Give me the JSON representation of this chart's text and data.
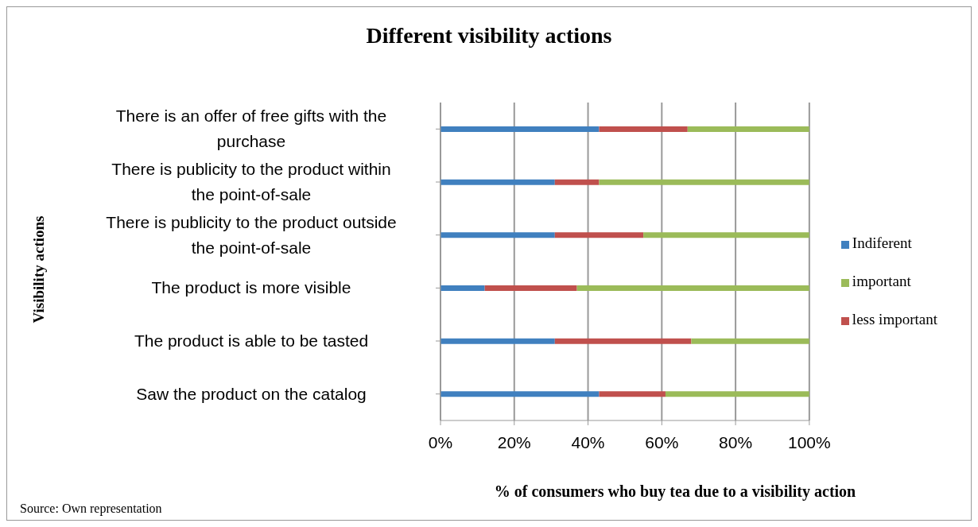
{
  "chart_data": {
    "type": "bar",
    "orientation": "horizontal",
    "stacked": true,
    "title": "Different visibility actions",
    "xlabel": "% of consumers who buy tea due to a visibility action",
    "ylabel": "Visibility actions",
    "categories": [
      "There is an offer of free gifts with the purchase",
      "There is publicity to the product within the point-of-sale",
      "There is publicity to the product outside the point-of-sale",
      "The product is more visible",
      "The product is able to be tasted",
      "Saw the product on the catalog"
    ],
    "series": [
      {
        "name": "Indiferent",
        "color": "#4080bf",
        "values": [
          43,
          31,
          31,
          12,
          31,
          43
        ]
      },
      {
        "name": "less important",
        "color": "#c0504d",
        "values": [
          24,
          12,
          24,
          25,
          37,
          18
        ]
      },
      {
        "name": "important",
        "color": "#9bbb59",
        "values": [
          33,
          57,
          45,
          63,
          32,
          39
        ]
      }
    ],
    "xlim": [
      0,
      100
    ],
    "xticks": [
      {
        "value": 0,
        "label": "0%"
      },
      {
        "value": 20,
        "label": "20%"
      },
      {
        "value": 40,
        "label": "40%"
      },
      {
        "value": 60,
        "label": "60%"
      },
      {
        "value": 80,
        "label": "80%"
      },
      {
        "value": 100,
        "label": "100%"
      }
    ],
    "grid": "x",
    "legend": "right",
    "annotations": [
      "Source: Own representation"
    ]
  }
}
